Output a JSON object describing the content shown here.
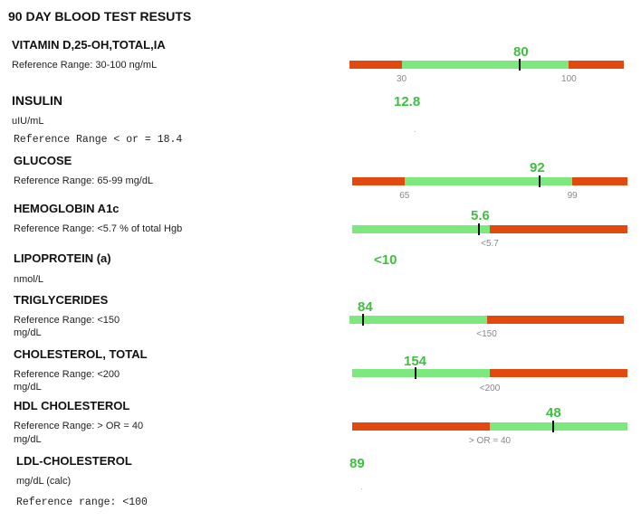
{
  "page_title": "90 DAY BLOOD TEST RESUTS",
  "colors": {
    "in_range": "#7de87d",
    "out_range": "#e2490e",
    "value_text": "#3fbf3f",
    "tick_text": "#888888"
  },
  "tests": [
    {
      "name": "VITAMIN D,25-OH,TOTAL,IA",
      "subs": [
        "Reference Range: 30-100 ng/mL"
      ],
      "value": "80",
      "bar": {
        "segments": [
          [
            "out",
            19
          ],
          [
            "in",
            61
          ],
          [
            "out",
            20
          ]
        ],
        "marker": 62,
        "ticks": [
          {
            "label": "30",
            "at": 19
          },
          {
            "label": "100",
            "at": 80
          }
        ]
      }
    },
    {
      "name": "INSULIN",
      "subs": [
        "uIU/mL"
      ],
      "mono": "Reference Range  < or = 18.4",
      "value": "12.8",
      "bar": null
    },
    {
      "name": "GLUCOSE",
      "subs": [
        "Reference Range: 65-99 mg/dL"
      ],
      "value": "92",
      "bar": {
        "segments": [
          [
            "out",
            19
          ],
          [
            "in",
            61
          ],
          [
            "out",
            20
          ]
        ],
        "marker": 68,
        "ticks": [
          {
            "label": "65",
            "at": 19
          },
          {
            "label": "99",
            "at": 80
          }
        ]
      }
    },
    {
      "name": "HEMOGLOBIN A1c",
      "subs": [
        "Reference Range: <5.7 % of total Hgb"
      ],
      "value": "5.6",
      "bar": {
        "segments": [
          [
            "in",
            50
          ],
          [
            "out",
            50
          ]
        ],
        "marker": 46,
        "ticks": [
          {
            "label": "<5.7",
            "at": 50
          }
        ]
      }
    },
    {
      "name": "LIPOPROTEIN (a)",
      "subs": [
        "nmol/L"
      ],
      "value": "<10",
      "bar": null
    },
    {
      "name": "TRIGLYCERIDES",
      "subs": [
        "Reference Range: <150",
        "mg/dL"
      ],
      "value": "84",
      "bar": {
        "segments": [
          [
            "in",
            50
          ],
          [
            "out",
            50
          ]
        ],
        "marker": 5,
        "ticks": [
          {
            "label": "<150",
            "at": 50
          }
        ]
      }
    },
    {
      "name": "CHOLESTEROL, TOTAL",
      "subs": [
        "Reference Range: <200",
        "mg/dL"
      ],
      "value": "154",
      "bar": {
        "segments": [
          [
            "in",
            50
          ],
          [
            "out",
            50
          ]
        ],
        "marker": 23,
        "ticks": [
          {
            "label": "<200",
            "at": 50
          }
        ]
      }
    },
    {
      "name": "HDL CHOLESTEROL",
      "subs": [
        "Reference Range: > OR = 40",
        "mg/dL"
      ],
      "value": "48",
      "bar": {
        "segments": [
          [
            "out",
            50
          ],
          [
            "in",
            50
          ]
        ],
        "marker": 73,
        "ticks": [
          {
            "label": "> OR = 40",
            "at": 50
          }
        ]
      }
    },
    {
      "name": "LDL-CHOLESTEROL",
      "subs": [
        "mg/dL (calc)"
      ],
      "mono": "Reference range: <100",
      "value": "89",
      "bar": null
    }
  ]
}
